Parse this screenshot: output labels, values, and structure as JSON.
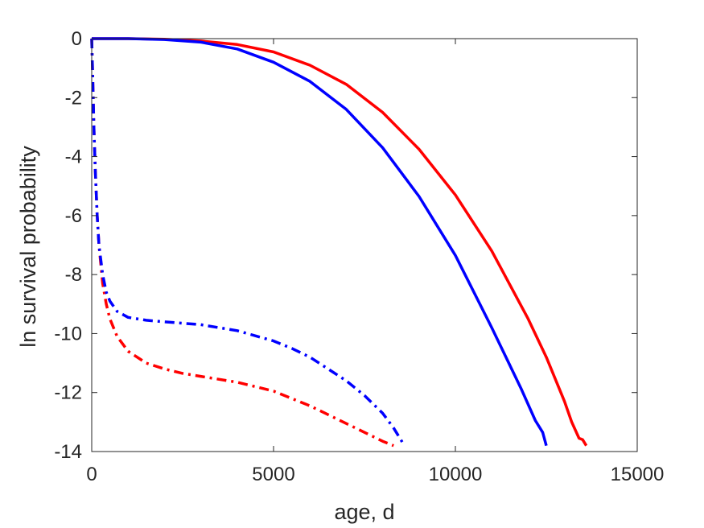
{
  "chart_data": {
    "type": "line",
    "title": "",
    "xlabel": "age, d",
    "ylabel": "ln survival probability",
    "xlim": [
      0,
      15000
    ],
    "ylim": [
      -14,
      0
    ],
    "xticks": [
      0,
      5000,
      10000,
      15000
    ],
    "xtick_labels": [
      "0",
      "5000",
      "10000",
      "15000"
    ],
    "yticks": [
      0,
      -2,
      -4,
      -6,
      -8,
      -10,
      -12,
      -14
    ],
    "ytick_labels": [
      "0",
      "-2",
      "-4",
      "-6",
      "-8",
      "-10",
      "-12",
      "-14"
    ],
    "grid": false,
    "legend": "none",
    "series": [
      {
        "color": "#ff0000",
        "style": "solid",
        "x": [
          0,
          1000,
          2000,
          3000,
          4000,
          5000,
          6000,
          7000,
          8000,
          9000,
          10000,
          11000,
          12000,
          12500,
          13000,
          13200,
          13400,
          13500,
          13600
        ],
        "y": [
          0,
          0,
          -0.02,
          -0.08,
          -0.2,
          -0.45,
          -0.9,
          -1.55,
          -2.5,
          -3.75,
          -5.3,
          -7.2,
          -9.5,
          -10.8,
          -12.3,
          -13.0,
          -13.55,
          -13.6,
          -13.8
        ]
      },
      {
        "color": "#0000ff",
        "style": "solid",
        "x": [
          0,
          1000,
          2000,
          3000,
          4000,
          5000,
          6000,
          7000,
          8000,
          9000,
          10000,
          11000,
          11800,
          12200,
          12400,
          12500
        ],
        "y": [
          0,
          0,
          -0.03,
          -0.12,
          -0.35,
          -0.8,
          -1.45,
          -2.4,
          -3.7,
          -5.35,
          -7.35,
          -9.8,
          -11.85,
          -12.95,
          -13.35,
          -13.8
        ]
      },
      {
        "color": "#ff0000",
        "style": "dashdot",
        "x": [
          0,
          30,
          60,
          100,
          150,
          200,
          300,
          400,
          500,
          700,
          1000,
          1500,
          2000,
          2500,
          3000,
          4000,
          5000,
          6000,
          7000,
          7500,
          8000,
          8300
        ],
        "y": [
          0,
          -1.5,
          -3.0,
          -4.5,
          -6.0,
          -7.0,
          -8.3,
          -9.0,
          -9.5,
          -10.1,
          -10.6,
          -11.0,
          -11.2,
          -11.35,
          -11.45,
          -11.65,
          -11.95,
          -12.45,
          -13.05,
          -13.35,
          -13.65,
          -13.8
        ]
      },
      {
        "color": "#0000ff",
        "style": "dashdot",
        "x": [
          0,
          30,
          60,
          100,
          150,
          200,
          300,
          400,
          500,
          700,
          1000,
          1500,
          2000,
          3000,
          4000,
          5000,
          5500,
          6000,
          7000,
          7500,
          8000,
          8300,
          8600
        ],
        "y": [
          0,
          -1.5,
          -3.0,
          -4.5,
          -6.0,
          -7.0,
          -8.0,
          -8.6,
          -8.9,
          -9.25,
          -9.45,
          -9.55,
          -9.6,
          -9.7,
          -9.9,
          -10.25,
          -10.5,
          -10.8,
          -11.6,
          -12.1,
          -12.7,
          -13.2,
          -13.8
        ]
      }
    ]
  }
}
